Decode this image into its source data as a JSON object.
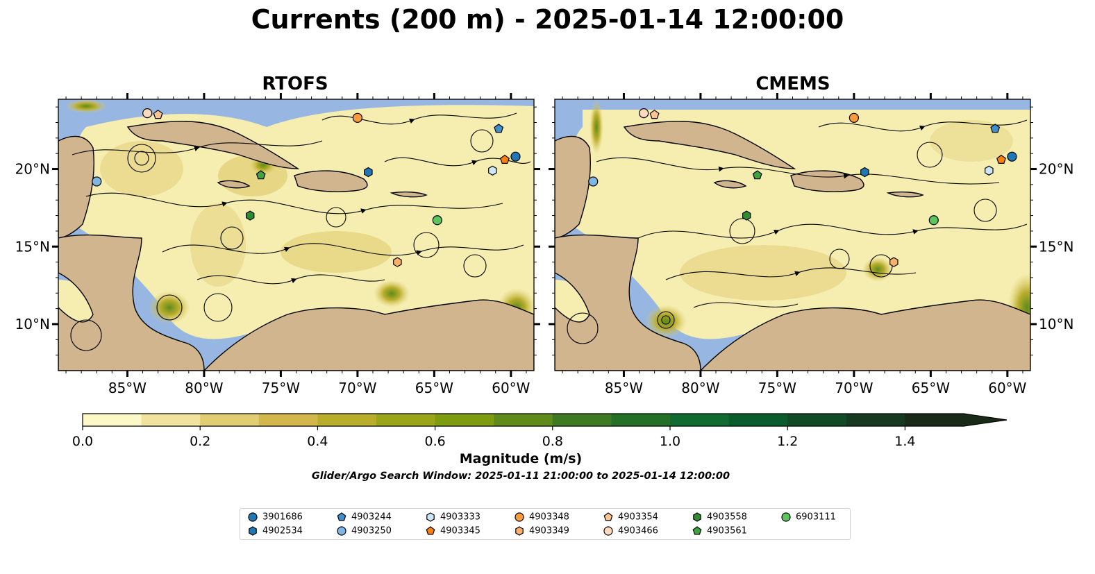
{
  "title": "Currents (200 m) - 2025-01-14 12:00:00",
  "panels": [
    {
      "title": "RTOFS"
    },
    {
      "title": "CMEMS"
    }
  ],
  "axes": {
    "x_ticks": [
      "85°W",
      "80°W",
      "75°W",
      "70°W",
      "65°W",
      "60°W"
    ],
    "y_ticks": [
      "20°N",
      "15°N",
      "10°N"
    ],
    "lon_range": [
      -89.5,
      -58.5
    ],
    "lat_range": [
      7,
      24.5
    ]
  },
  "colorbar": {
    "label": "Magnitude (m/s)",
    "ticks": [
      "0.0",
      "0.2",
      "0.4",
      "0.6",
      "0.8",
      "1.0",
      "1.2",
      "1.4"
    ],
    "range": [
      0,
      1.5
    ],
    "extend": "max",
    "colors": [
      "#fdf8c8",
      "#f0e3a0",
      "#e1cd72",
      "#d2b84c",
      "#b9ad2c",
      "#9aa518",
      "#7d9c10",
      "#5e8b1a",
      "#3f7a22",
      "#237026",
      "#116a30",
      "#0b5c2c",
      "#124a25",
      "#16391f",
      "#1a2a18"
    ]
  },
  "search_window": "Glider/Argo Search Window: 2025-01-11 21:00:00 to 2025-01-14 12:00:00",
  "colors": {
    "ocean": "#97b6e1",
    "land": "#d0b58e",
    "border_line": "#000000"
  },
  "legend": {
    "items": [
      {
        "id": "3901686",
        "marker": "circle",
        "color": "#1f77b4"
      },
      {
        "id": "4902534",
        "marker": "hexagon",
        "color": "#1f77b4"
      },
      {
        "id": "4903244",
        "marker": "pentagon",
        "color": "#3f8fcf"
      },
      {
        "id": "4903250",
        "marker": "circle",
        "color": "#7fb6e3"
      },
      {
        "id": "4903333",
        "marker": "hexagon",
        "color": "#cde6f8"
      },
      {
        "id": "4903345",
        "marker": "pentagon",
        "color": "#ff7f0e"
      },
      {
        "id": "4903348",
        "marker": "circle",
        "color": "#fd9a3a"
      },
      {
        "id": "4903349",
        "marker": "hexagon",
        "color": "#fdb06a"
      },
      {
        "id": "4903354",
        "marker": "pentagon",
        "color": "#fdc494"
      },
      {
        "id": "4903466",
        "marker": "circle",
        "color": "#fdd9bd"
      },
      {
        "id": "4903558",
        "marker": "hexagon",
        "color": "#2e8b2e"
      },
      {
        "id": "4903561",
        "marker": "pentagon",
        "color": "#3fa23f"
      },
      {
        "id": "6903111",
        "marker": "circle",
        "color": "#5cc55c"
      }
    ]
  },
  "markers": [
    {
      "id": "3901686",
      "lon": -59.7,
      "lat": 20.8
    },
    {
      "id": "4902534",
      "lon": -69.3,
      "lat": 19.8
    },
    {
      "id": "4903244",
      "lon": -60.8,
      "lat": 22.6
    },
    {
      "id": "4903250",
      "lon": -87.0,
      "lat": 19.2
    },
    {
      "id": "4903333",
      "lon": -61.2,
      "lat": 19.9
    },
    {
      "id": "4903345",
      "lon": -60.4,
      "lat": 20.6
    },
    {
      "id": "4903348",
      "lon": -70.0,
      "lat": 23.3
    },
    {
      "id": "4903349",
      "lon": -67.4,
      "lat": 14.0
    },
    {
      "id": "4903354",
      "lon": -83.0,
      "lat": 23.5
    },
    {
      "id": "4903466",
      "lon": -83.7,
      "lat": 23.6
    },
    {
      "id": "4903558",
      "lon": -77.0,
      "lat": 17.0
    },
    {
      "id": "4903561",
      "lon": -76.3,
      "lat": 19.6
    },
    {
      "id": "6903111",
      "lon": -64.8,
      "lat": 16.7
    }
  ]
}
